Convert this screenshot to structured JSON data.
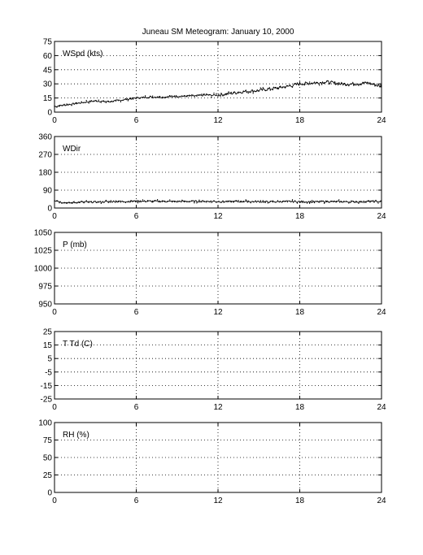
{
  "title": "Juneau SM Meteogram:   January 10, 2000",
  "colors": {
    "line": "#000000",
    "background": "#ffffff"
  },
  "chart_data": [
    {
      "type": "line",
      "label": "WSpd (kts)",
      "xlim": [
        0,
        24
      ],
      "ylim": [
        0,
        75
      ],
      "xticks": [
        0,
        6,
        12,
        18,
        24
      ],
      "yticks": [
        0,
        15,
        30,
        45,
        60,
        75
      ],
      "grid": true,
      "series": [
        {
          "x": [
            0,
            1,
            2,
            3,
            4,
            5,
            6,
            7,
            8,
            9,
            10,
            11,
            12,
            13,
            14,
            15,
            16,
            17,
            18,
            19,
            20,
            21,
            22,
            23,
            24
          ],
          "values": [
            6,
            8,
            10,
            12,
            11,
            13,
            15,
            16,
            16,
            17,
            17,
            18,
            18,
            20,
            22,
            23,
            25,
            27,
            30,
            31,
            32,
            30,
            30,
            31,
            27
          ]
        }
      ]
    },
    {
      "type": "line",
      "label": "WDir",
      "xlim": [
        0,
        24
      ],
      "ylim": [
        0,
        360
      ],
      "xticks": [
        0,
        6,
        12,
        18,
        24
      ],
      "yticks": [
        0,
        90,
        180,
        270,
        360
      ],
      "grid": true,
      "series": [
        {
          "x": [
            0,
            0.5,
            1,
            1.5,
            2,
            3,
            4,
            5,
            6,
            7,
            8,
            9,
            10,
            11,
            12,
            13,
            14,
            15,
            16,
            17,
            18,
            19,
            20,
            21,
            22,
            23,
            24
          ],
          "values": [
            40,
            30,
            25,
            28,
            30,
            30,
            32,
            33,
            34,
            34,
            33,
            33,
            34,
            34,
            33,
            32,
            33,
            32,
            31,
            33,
            32,
            31,
            33,
            32,
            31,
            32,
            33
          ]
        }
      ]
    },
    {
      "type": "line",
      "label": "P (mb)",
      "xlim": [
        0,
        24
      ],
      "ylim": [
        950,
        1050
      ],
      "xticks": [
        0,
        6,
        12,
        18,
        24
      ],
      "yticks": [
        950,
        975,
        1000,
        1025,
        1050
      ],
      "grid": true,
      "series": []
    },
    {
      "type": "line",
      "label": "T Td (C)",
      "xlim": [
        0,
        24
      ],
      "ylim": [
        -25,
        25
      ],
      "xticks": [
        0,
        6,
        12,
        18,
        24
      ],
      "yticks": [
        -25,
        -15,
        -5,
        5,
        15,
        25
      ],
      "grid": true,
      "series": []
    },
    {
      "type": "line",
      "label": "RH (%)",
      "xlim": [
        0,
        24
      ],
      "ylim": [
        0,
        100
      ],
      "xticks": [
        0,
        6,
        12,
        18,
        24
      ],
      "yticks": [
        0,
        25,
        50,
        75,
        100
      ],
      "grid": true,
      "series": []
    }
  ]
}
